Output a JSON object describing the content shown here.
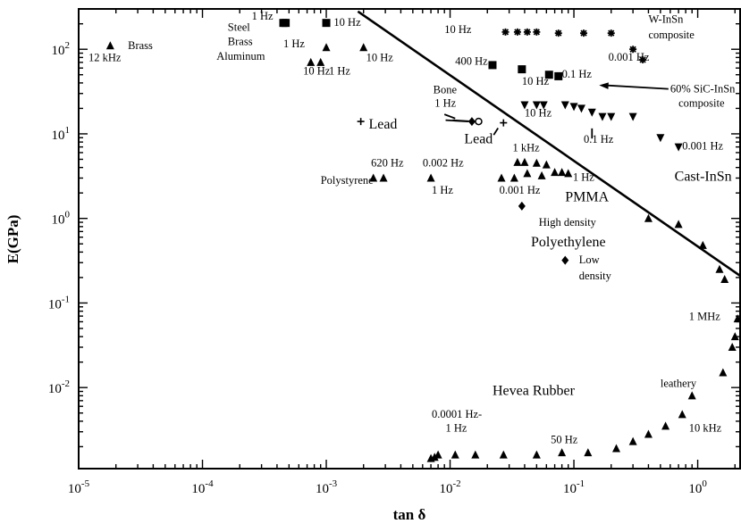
{
  "chart_data": {
    "type": "scatter",
    "title": "",
    "xlabel": "tan δ",
    "ylabel": "E(GPa)",
    "x_scale": "log",
    "y_scale": "log",
    "xlim": [
      1e-05,
      2.2
    ],
    "ylim": [
      0.0011,
      300
    ],
    "grid": false,
    "x_ticks": [
      {
        "value": 1e-05,
        "base": "10",
        "exp": "-5"
      },
      {
        "value": 0.0001,
        "base": "10",
        "exp": "-4"
      },
      {
        "value": 0.001,
        "base": "10",
        "exp": "-3"
      },
      {
        "value": 0.01,
        "base": "10",
        "exp": "-2"
      },
      {
        "value": 0.1,
        "base": "10",
        "exp": "-1"
      },
      {
        "value": 1,
        "base": "10",
        "exp": "0"
      }
    ],
    "y_ticks": [
      {
        "value": 100,
        "base": "10",
        "exp": "2"
      },
      {
        "value": 10,
        "base": "10",
        "exp": "1"
      },
      {
        "value": 1,
        "base": "10",
        "exp": "0"
      },
      {
        "value": 0.1,
        "base": "10",
        "exp": "-1"
      },
      {
        "value": 0.01,
        "base": "10",
        "exp": "-2"
      }
    ],
    "series": [
      {
        "marker": "triangle",
        "points": [
          [
            1.8e-05,
            110
          ],
          [
            0.001,
            105
          ],
          [
            0.00075,
            70
          ],
          [
            0.0009,
            70
          ],
          [
            0.002,
            105
          ],
          [
            0.0024,
            3
          ],
          [
            0.0029,
            3
          ],
          [
            0.007,
            3
          ],
          [
            0.026,
            3
          ],
          [
            0.033,
            3
          ],
          [
            0.035,
            4.6
          ],
          [
            0.04,
            4.6
          ],
          [
            0.042,
            3.4
          ],
          [
            0.05,
            4.5
          ],
          [
            0.055,
            3.2
          ],
          [
            0.06,
            4.3
          ],
          [
            0.07,
            3.5
          ],
          [
            0.08,
            3.5
          ],
          [
            0.09,
            3.4
          ],
          [
            0.4,
            1
          ],
          [
            0.7,
            0.85
          ],
          [
            1.1,
            0.48
          ],
          [
            1.5,
            0.25
          ],
          [
            1.65,
            0.19
          ],
          [
            2.1,
            0.065
          ],
          [
            2.0,
            0.04
          ],
          [
            1.9,
            0.03
          ],
          [
            1.6,
            0.015
          ],
          [
            0.9,
            0.008
          ],
          [
            0.007,
            0.00145
          ],
          [
            0.0075,
            0.0015
          ],
          [
            0.008,
            0.0016
          ],
          [
            0.011,
            0.0016
          ],
          [
            0.016,
            0.0016
          ],
          [
            0.027,
            0.0016
          ],
          [
            0.05,
            0.0016
          ],
          [
            0.08,
            0.0017
          ],
          [
            0.13,
            0.0017
          ],
          [
            0.22,
            0.0019
          ],
          [
            0.3,
            0.0023
          ],
          [
            0.4,
            0.0028
          ],
          [
            0.55,
            0.0035
          ],
          [
            0.75,
            0.0048
          ]
        ]
      },
      {
        "marker": "square",
        "points": [
          [
            0.00045,
            205
          ],
          [
            0.00047,
            205
          ],
          [
            0.001,
            205
          ],
          [
            0.022,
            65
          ],
          [
            0.038,
            58
          ],
          [
            0.063,
            50
          ],
          [
            0.075,
            48
          ]
        ]
      },
      {
        "marker": "asterisk",
        "points": [
          [
            0.028,
            160
          ],
          [
            0.035,
            160
          ],
          [
            0.042,
            160
          ],
          [
            0.05,
            160
          ],
          [
            0.075,
            155
          ],
          [
            0.12,
            155
          ],
          [
            0.2,
            155
          ],
          [
            0.3,
            100
          ],
          [
            0.36,
            75
          ]
        ]
      },
      {
        "marker": "inv-triangle",
        "points": [
          [
            0.04,
            22
          ],
          [
            0.05,
            22
          ],
          [
            0.057,
            22
          ],
          [
            0.085,
            22
          ],
          [
            0.1,
            21
          ],
          [
            0.115,
            20
          ],
          [
            0.14,
            18
          ],
          [
            0.17,
            16
          ],
          [
            0.2,
            16
          ],
          [
            0.3,
            16
          ],
          [
            0.5,
            9
          ],
          [
            0.7,
            7
          ]
        ]
      },
      {
        "marker": "diamond",
        "points": [
          [
            0.015,
            14
          ],
          [
            0.038,
            1.4
          ],
          [
            0.085,
            0.32
          ]
        ]
      },
      {
        "marker": "plus",
        "points": [
          [
            0.0019,
            14
          ],
          [
            0.027,
            13.5
          ]
        ]
      },
      {
        "marker": "circle",
        "points": [
          [
            0.017,
            14
          ]
        ]
      }
    ],
    "lines": [
      {
        "points": [
          [
            0.0018,
            280
          ],
          [
            2.2,
            0.21
          ]
        ]
      }
    ],
    "annotations": [
      {
        "text": "Brass",
        "x": 2.5e-05,
        "y": 100,
        "size": "small"
      },
      {
        "text": "12 kHz",
        "x": 1.2e-05,
        "y": 72,
        "size": "small"
      },
      {
        "text": "Steel",
        "x": 0.00016,
        "y": 165,
        "size": "small"
      },
      {
        "text": "Brass",
        "x": 0.00016,
        "y": 112,
        "size": "small"
      },
      {
        "text": "Aluminum",
        "x": 0.00013,
        "y": 75,
        "size": "small"
      },
      {
        "text": "1 Hz",
        "x": 0.00025,
        "y": 225,
        "size": "small"
      },
      {
        "text": "1 Hz",
        "x": 0.00045,
        "y": 105,
        "size": "small"
      },
      {
        "text": "10 Hz",
        "x": 0.00115,
        "y": 190,
        "size": "small"
      },
      {
        "text": "10 Hz",
        "x": 0.00065,
        "y": 50,
        "size": "small"
      },
      {
        "text": "1 Hz",
        "x": 0.00105,
        "y": 50,
        "size": "small"
      },
      {
        "text": "10 Hz",
        "x": 0.0021,
        "y": 72,
        "size": "small"
      },
      {
        "text": "10 Hz",
        "x": 0.009,
        "y": 155,
        "size": "small"
      },
      {
        "text": "400 Hz",
        "x": 0.011,
        "y": 66,
        "size": "small"
      },
      {
        "text": "W-InSn",
        "x": 0.4,
        "y": 205,
        "size": "small"
      },
      {
        "text": "composite",
        "x": 0.4,
        "y": 135,
        "size": "small"
      },
      {
        "text": "0.001 Hz",
        "x": 0.19,
        "y": 73,
        "size": "small"
      },
      {
        "text": "10 Hz",
        "x": 0.038,
        "y": 38,
        "size": "small"
      },
      {
        "text": "0.1 Hz",
        "x": 0.08,
        "y": 46,
        "size": "small"
      },
      {
        "text": "60% SiC-InSn",
        "x": 0.6,
        "y": 31,
        "size": "small"
      },
      {
        "text": "composite",
        "x": 0.7,
        "y": 21,
        "size": "small"
      },
      {
        "text": "Bone",
        "x": 0.0073,
        "y": 30,
        "size": "small"
      },
      {
        "text": "1 Hz",
        "x": 0.0075,
        "y": 21,
        "size": "small"
      },
      {
        "text": "10 Hz",
        "x": 0.04,
        "y": 16,
        "size": "small"
      },
      {
        "text": "0.1 Hz",
        "x": 0.12,
        "y": 7.8,
        "size": "small"
      },
      {
        "text": "0.001 Hz",
        "x": 0.75,
        "y": 6.5,
        "size": "small"
      },
      {
        "text": "Lead",
        "x": 0.0022,
        "y": 11.5,
        "size": "big"
      },
      {
        "text": "Lead",
        "x": 0.013,
        "y": 7.7,
        "size": "big"
      },
      {
        "text": "Cast-InSn",
        "x": 0.65,
        "y": 2.8,
        "size": "big"
      },
      {
        "text": "620 Hz",
        "x": 0.0023,
        "y": 4.1,
        "size": "small"
      },
      {
        "text": "0.002 Hz",
        "x": 0.006,
        "y": 4.1,
        "size": "small"
      },
      {
        "text": "1 kHz",
        "x": 0.032,
        "y": 6.2,
        "size": "small"
      },
      {
        "text": "Polystyrene",
        "x": 0.0009,
        "y": 2.55,
        "size": "small"
      },
      {
        "text": "1 Hz",
        "x": 0.0071,
        "y": 1.95,
        "size": "small"
      },
      {
        "text": "1 Hz",
        "x": 0.098,
        "y": 2.8,
        "size": "small"
      },
      {
        "text": "0.001 Hz",
        "x": 0.025,
        "y": 1.95,
        "size": "small"
      },
      {
        "text": "PMMA",
        "x": 0.085,
        "y": 1.6,
        "size": "big"
      },
      {
        "text": "High density",
        "x": 0.052,
        "y": 0.82,
        "size": "small"
      },
      {
        "text": "Polyethylene",
        "x": 0.045,
        "y": 0.47,
        "size": "big"
      },
      {
        "text": "Low",
        "x": 0.11,
        "y": 0.295,
        "size": "small"
      },
      {
        "text": "density",
        "x": 0.11,
        "y": 0.19,
        "size": "small"
      },
      {
        "text": "1 MHz",
        "x": 0.85,
        "y": 0.063,
        "size": "small"
      },
      {
        "text": "leathery",
        "x": 0.5,
        "y": 0.0102,
        "size": "small"
      },
      {
        "text": "Hevea Rubber",
        "x": 0.022,
        "y": 0.0082,
        "size": "big"
      },
      {
        "text": "0.0001 Hz-",
        "x": 0.0071,
        "y": 0.0044,
        "size": "small"
      },
      {
        "text": "1 Hz",
        "x": 0.0092,
        "y": 0.003,
        "size": "small"
      },
      {
        "text": "50 Hz",
        "x": 0.065,
        "y": 0.0022,
        "size": "small"
      },
      {
        "text": "10 kHz",
        "x": 0.85,
        "y": 0.003,
        "size": "small"
      }
    ],
    "leader_lines": [
      {
        "points": [
          [
            0.0092,
            14.5
          ],
          [
            0.014,
            14
          ]
        ]
      },
      {
        "points": [
          [
            0.009,
            17
          ],
          [
            0.011,
            15.2
          ]
        ]
      },
      {
        "points": [
          [
            0.0105,
            14.5
          ],
          [
            0.0165,
            13.9
          ]
        ]
      },
      {
        "points": [
          [
            0.0225,
            9.7
          ],
          [
            0.0244,
            11.7
          ]
        ]
      },
      {
        "points": [
          [
            0.14,
            8.8
          ],
          [
            0.14,
            11.6
          ]
        ]
      },
      {
        "points": [
          [
            0.58,
            34
          ],
          [
            0.18,
            37.5
          ]
        ]
      }
    ],
    "arrows": [
      {
        "points": [
          [
            0.58,
            34
          ],
          [
            0.16,
            37.5
          ]
        ]
      }
    ]
  }
}
